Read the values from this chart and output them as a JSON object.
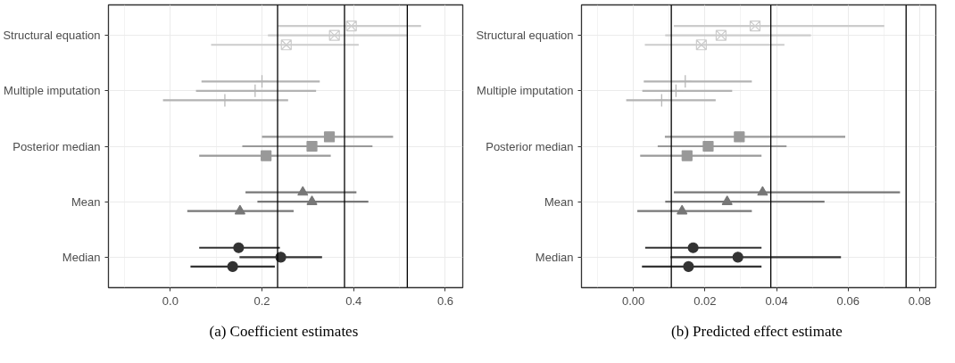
{
  "chart_data": [
    {
      "type": "scatter",
      "orientation": "horizontal",
      "categories": [
        "Structural equation",
        "Multiple imputation",
        "Posterior median",
        "Mean",
        "Median"
      ],
      "marker": [
        "square_x",
        "cross",
        "square",
        "triangle",
        "circle"
      ],
      "grid": true,
      "xlim": [
        -0.135,
        0.638
      ],
      "xticks": [
        {
          "value": 0,
          "label": "0.0"
        },
        {
          "value": 0.2,
          "label": "0.2"
        },
        {
          "value": 0.4,
          "label": "0.4"
        },
        {
          "value": 0.6,
          "label": "0.6"
        }
      ],
      "ref_lines": [
        {
          "axis": "x",
          "value": 0.234
        },
        {
          "axis": "x",
          "value": 0.38
        },
        {
          "axis": "x",
          "value": 0.517
        }
      ],
      "annotations": [
        "(a)  Coefficient estimates"
      ],
      "series": [
        {
          "colors": [
            "#cccccc",
            "#b3b3b3",
            "#999999",
            "#777777",
            "#333333"
          ],
          "values": [
            0.395,
            0.2,
            0.347,
            0.289,
            0.149
          ],
          "errors": [
            [
              0.235,
              0.547
            ],
            [
              0.068,
              0.326
            ],
            [
              0.2,
              0.486
            ],
            [
              0.164,
              0.406
            ],
            [
              0.063,
              0.239
            ]
          ]
        },
        {
          "colors": [
            "#cccccc",
            "#b3b3b3",
            "#999999",
            "#777777",
            "#333333"
          ],
          "values": [
            0.358,
            0.185,
            0.309,
            0.309,
            0.241
          ],
          "errors": [
            [
              0.213,
              0.518
            ],
            [
              0.056,
              0.318
            ],
            [
              0.157,
              0.441
            ],
            [
              0.19,
              0.432
            ],
            [
              0.151,
              0.331
            ]
          ]
        },
        {
          "colors": [
            "#cccccc",
            "#b3b3b3",
            "#999999",
            "#777777",
            "#333333"
          ],
          "values": [
            0.253,
            0.119,
            0.209,
            0.152,
            0.136
          ],
          "errors": [
            [
              0.089,
              0.411
            ],
            [
              -0.016,
              0.257
            ],
            [
              0.063,
              0.35
            ],
            [
              0.037,
              0.269
            ],
            [
              0.044,
              0.228
            ]
          ]
        }
      ]
    },
    {
      "type": "scatter",
      "orientation": "horizontal",
      "categories": [
        "Structural equation",
        "Multiple imputation",
        "Posterior median",
        "Mean",
        "Median"
      ],
      "marker": [
        "square_x",
        "cross",
        "square",
        "triangle",
        "circle"
      ],
      "grid": true,
      "xlim": [
        -0.0145,
        0.0845
      ],
      "xticks": [
        {
          "value": 0,
          "label": "0.00"
        },
        {
          "value": 0.02,
          "label": "0.02"
        },
        {
          "value": 0.04,
          "label": "0.04"
        },
        {
          "value": 0.06,
          "label": "0.06"
        },
        {
          "value": 0.08,
          "label": "0.08"
        }
      ],
      "ref_lines": [
        {
          "axis": "x",
          "value": 0.0106
        },
        {
          "axis": "x",
          "value": 0.0384
        },
        {
          "axis": "x",
          "value": 0.0762
        }
      ],
      "annotations": [
        "(b)  Predicted effect estimate"
      ],
      "series": [
        {
          "colors": [
            "#cccccc",
            "#b3b3b3",
            "#999999",
            "#777777",
            "#333333"
          ],
          "values": [
            0.034,
            0.0145,
            0.0296,
            0.0361,
            0.0167
          ],
          "errors": [
            [
              0.0113,
              0.0701
            ],
            [
              0.0029,
              0.0331
            ],
            [
              0.0088,
              0.0592
            ],
            [
              0.0113,
              0.0745
            ],
            [
              0.0033,
              0.0358
            ]
          ]
        },
        {
          "colors": [
            "#cccccc",
            "#b3b3b3",
            "#999999",
            "#777777",
            "#333333"
          ],
          "values": [
            0.0245,
            0.0119,
            0.0209,
            0.0262,
            0.0292
          ],
          "errors": [
            [
              0.0089,
              0.0496
            ],
            [
              0.0025,
              0.0276
            ],
            [
              0.0068,
              0.0428
            ],
            [
              0.0089,
              0.0534
            ],
            [
              0.0104,
              0.058
            ]
          ]
        },
        {
          "colors": [
            "#cccccc",
            "#b3b3b3",
            "#999999",
            "#777777",
            "#333333"
          ],
          "values": [
            0.019,
            0.0079,
            0.015,
            0.0136,
            0.0154
          ],
          "errors": [
            [
              0.0032,
              0.0422
            ],
            [
              -0.002,
              0.023
            ],
            [
              0.0019,
              0.0358
            ],
            [
              0.0011,
              0.0331
            ],
            [
              0.0024,
              0.0358
            ]
          ]
        }
      ]
    }
  ]
}
